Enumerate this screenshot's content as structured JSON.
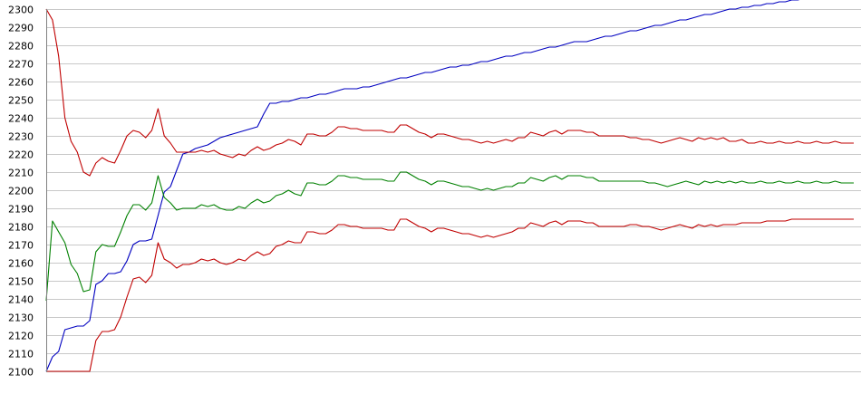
{
  "chart_data": {
    "type": "line",
    "title": "",
    "xlabel": "",
    "ylabel": "",
    "ylim": [
      2100,
      2300
    ],
    "yticks": [
      2100,
      2110,
      2120,
      2130,
      2140,
      2150,
      2160,
      2170,
      2180,
      2190,
      2200,
      2210,
      2220,
      2230,
      2240,
      2250,
      2260,
      2270,
      2280,
      2290,
      2300
    ],
    "yticks_text": [
      "2100",
      "2110",
      "2120",
      "2130",
      "2140",
      "2150",
      "2160",
      "2170",
      "2180",
      "2190",
      "2200",
      "2210",
      "2220",
      "2230",
      "2240",
      "2250",
      "2260",
      "2270",
      "2280",
      "2290",
      "2300"
    ],
    "xlim": [
      0,
      130
    ],
    "grid": "horizontal",
    "x_tick_labels": "none",
    "colors": {
      "blue": "#0000c0",
      "green": "#008000",
      "red": "#c00000",
      "grid": "#c8c8c8"
    },
    "series": [
      {
        "color": "#0000c0",
        "x": [
          0,
          1,
          2,
          3,
          4,
          5,
          6,
          7,
          8,
          9,
          10,
          11,
          12,
          13,
          14,
          15,
          16,
          17,
          18,
          19,
          20,
          21,
          22,
          23,
          24,
          25,
          26,
          27,
          28,
          29,
          30,
          31,
          32,
          33,
          34,
          35,
          36,
          37,
          38,
          39,
          40,
          41,
          42,
          43,
          44,
          45,
          46,
          47,
          48,
          49,
          50,
          51,
          52,
          53,
          54,
          55,
          56,
          57,
          58,
          59,
          60,
          61,
          62,
          63,
          64,
          65,
          66,
          67,
          68,
          69,
          70,
          71,
          72,
          73,
          74,
          75,
          76,
          77,
          78,
          79,
          80,
          81,
          82,
          83,
          84,
          85,
          86,
          87,
          88,
          89,
          90,
          91,
          92,
          93,
          94,
          95,
          96,
          97,
          98,
          99,
          100,
          101,
          102,
          103,
          104,
          105,
          106,
          107,
          108,
          109,
          110,
          111,
          112,
          113,
          114,
          115,
          116,
          117,
          118,
          119,
          120,
          121,
          122,
          123,
          124,
          125,
          126,
          127,
          128,
          129,
          130
        ],
        "values": [
          2100,
          2108,
          2111,
          2123,
          2124,
          2125,
          2125,
          2128,
          2148,
          2150,
          2154,
          2154,
          2155,
          2161,
          2170,
          2172,
          2172,
          2173,
          2186,
          2199,
          2202,
          2211,
          2220,
          2221,
          2223,
          2224,
          2225,
          2227,
          2229,
          2230,
          2231,
          2232,
          2233,
          2234,
          2235,
          2242,
          2248,
          2248,
          2249,
          2249,
          2250,
          2251,
          2251,
          2252,
          2253,
          2253,
          2254,
          2255,
          2256,
          2256,
          2256,
          2257,
          2257,
          2258,
          2259,
          2260,
          2261,
          2262,
          2262,
          2263,
          2264,
          2265,
          2265,
          2266,
          2267,
          2268,
          2268,
          2269,
          2269,
          2270,
          2271,
          2271,
          2272,
          2273,
          2274,
          2274,
          2275,
          2276,
          2276,
          2277,
          2278,
          2279,
          2279,
          2280,
          2281,
          2282,
          2282,
          2282,
          2283,
          2284,
          2285,
          2285,
          2286,
          2287,
          2288,
          2288,
          2289,
          2290,
          2291,
          2291,
          2292,
          2293,
          2294,
          2294,
          2295,
          2296,
          2297,
          2297,
          2298,
          2299,
          2300,
          2300,
          2301,
          2301,
          2302,
          2302,
          2303,
          2303,
          2304,
          2304,
          2305,
          2305,
          2306,
          2306,
          2307,
          2307,
          2308,
          2308,
          2309,
          2309,
          2310
        ]
      },
      {
        "color": "#008000",
        "x": [
          0,
          1,
          2,
          3,
          4,
          5,
          6,
          7,
          8,
          9,
          10,
          11,
          12,
          13,
          14,
          15,
          16,
          17,
          18,
          19,
          20,
          21,
          22,
          23,
          24,
          25,
          26,
          27,
          28,
          29,
          30,
          31,
          32,
          33,
          34,
          35,
          36,
          37,
          38,
          39,
          40,
          41,
          42,
          43,
          44,
          45,
          46,
          47,
          48,
          49,
          50,
          51,
          52,
          53,
          54,
          55,
          56,
          57,
          58,
          59,
          60,
          61,
          62,
          63,
          64,
          65,
          66,
          67,
          68,
          69,
          70,
          71,
          72,
          73,
          74,
          75,
          76,
          77,
          78,
          79,
          80,
          81,
          82,
          83,
          84,
          85,
          86,
          87,
          88,
          89,
          90,
          91,
          92,
          93,
          94,
          95,
          96,
          97,
          98,
          99,
          100,
          101,
          102,
          103,
          104,
          105,
          106,
          107,
          108,
          109,
          110,
          111,
          112,
          113,
          114,
          115,
          116,
          117,
          118,
          119,
          120,
          121,
          122,
          123,
          124,
          125,
          126,
          127,
          128,
          129,
          130
        ],
        "values": [
          2139,
          2183,
          2177,
          2171,
          2159,
          2154,
          2144,
          2145,
          2166,
          2170,
          2169,
          2169,
          2177,
          2186,
          2192,
          2192,
          2189,
          2193,
          2208,
          2196,
          2193,
          2189,
          2190,
          2190,
          2190,
          2192,
          2191,
          2192,
          2190,
          2189,
          2189,
          2191,
          2190,
          2193,
          2195,
          2193,
          2194,
          2197,
          2198,
          2200,
          2198,
          2197,
          2204,
          2204,
          2203,
          2203,
          2205,
          2208,
          2208,
          2207,
          2207,
          2206,
          2206,
          2206,
          2206,
          2205,
          2205,
          2210,
          2210,
          2208,
          2206,
          2205,
          2203,
          2205,
          2205,
          2204,
          2203,
          2202,
          2202,
          2201,
          2200,
          2201,
          2200,
          2201,
          2202,
          2202,
          2204,
          2204,
          2207,
          2206,
          2205,
          2207,
          2208,
          2206,
          2208,
          2208,
          2208,
          2207,
          2207,
          2205,
          2205,
          2205,
          2205,
          2205,
          2205,
          2205,
          2205,
          2204,
          2204,
          2203,
          2202,
          2203,
          2204,
          2205,
          2204,
          2203,
          2205,
          2204,
          2205,
          2204,
          2205,
          2204,
          2205,
          2204,
          2204,
          2205,
          2204,
          2204,
          2205,
          2204,
          2204,
          2205,
          2204,
          2204,
          2205,
          2204,
          2204,
          2205,
          2204,
          2204,
          2204
        ]
      },
      {
        "color": "#c00000",
        "x": [
          0,
          1,
          2,
          3,
          4,
          5,
          6,
          7,
          8,
          9,
          10,
          11,
          12,
          13,
          14,
          15,
          16,
          17,
          18,
          19,
          20,
          21,
          22,
          23,
          24,
          25,
          26,
          27,
          28,
          29,
          30,
          31,
          32,
          33,
          34,
          35,
          36,
          37,
          38,
          39,
          40,
          41,
          42,
          43,
          44,
          45,
          46,
          47,
          48,
          49,
          50,
          51,
          52,
          53,
          54,
          55,
          56,
          57,
          58,
          59,
          60,
          61,
          62,
          63,
          64,
          65,
          66,
          67,
          68,
          69,
          70,
          71,
          72,
          73,
          74,
          75,
          76,
          77,
          78,
          79,
          80,
          81,
          82,
          83,
          84,
          85,
          86,
          87,
          88,
          89,
          90,
          91,
          92,
          93,
          94,
          95,
          96,
          97,
          98,
          99,
          100,
          101,
          102,
          103,
          104,
          105,
          106,
          107,
          108,
          109,
          110,
          111,
          112,
          113,
          114,
          115,
          116,
          117,
          118,
          119,
          120,
          121,
          122,
          123,
          124,
          125,
          126,
          127,
          128,
          129,
          130
        ],
        "values": [
          2300,
          2294,
          2274,
          2240,
          2227,
          2221,
          2210,
          2208,
          2215,
          2218,
          2216,
          2215,
          2222,
          2230,
          2233,
          2232,
          2229,
          2233,
          2245,
          2230,
          2226,
          2221,
          2221,
          2221,
          2221,
          2222,
          2221,
          2222,
          2220,
          2219,
          2218,
          2220,
          2219,
          2222,
          2224,
          2222,
          2223,
          2225,
          2226,
          2228,
          2227,
          2225,
          2231,
          2231,
          2230,
          2230,
          2232,
          2235,
          2235,
          2234,
          2234,
          2233,
          2233,
          2233,
          2233,
          2232,
          2232,
          2236,
          2236,
          2234,
          2232,
          2231,
          2229,
          2231,
          2231,
          2230,
          2229,
          2228,
          2228,
          2227,
          2226,
          2227,
          2226,
          2227,
          2228,
          2227,
          2229,
          2229,
          2232,
          2231,
          2230,
          2232,
          2233,
          2231,
          2233,
          2233,
          2233,
          2232,
          2232,
          2230,
          2230,
          2230,
          2230,
          2230,
          2229,
          2229,
          2228,
          2228,
          2227,
          2226,
          2227,
          2228,
          2229,
          2228,
          2227,
          2229,
          2228,
          2229,
          2228,
          2229,
          2227,
          2227,
          2228,
          2226,
          2226,
          2227,
          2226,
          2226,
          2227,
          2226,
          2226,
          2227,
          2226,
          2226,
          2227,
          2226,
          2226,
          2227,
          2226,
          2226,
          2226
        ]
      },
      {
        "color": "#c00000",
        "x": [
          0,
          1,
          2,
          3,
          4,
          5,
          6,
          7,
          8,
          9,
          10,
          11,
          12,
          13,
          14,
          15,
          16,
          17,
          18,
          19,
          20,
          21,
          22,
          23,
          24,
          25,
          26,
          27,
          28,
          29,
          30,
          31,
          32,
          33,
          34,
          35,
          36,
          37,
          38,
          39,
          40,
          41,
          42,
          43,
          44,
          45,
          46,
          47,
          48,
          49,
          50,
          51,
          52,
          53,
          54,
          55,
          56,
          57,
          58,
          59,
          60,
          61,
          62,
          63,
          64,
          65,
          66,
          67,
          68,
          69,
          70,
          71,
          72,
          73,
          74,
          75,
          76,
          77,
          78,
          79,
          80,
          81,
          82,
          83,
          84,
          85,
          86,
          87,
          88,
          89,
          90,
          91,
          92,
          93,
          94,
          95,
          96,
          97,
          98,
          99,
          100,
          101,
          102,
          103,
          104,
          105,
          106,
          107,
          108,
          109,
          110,
          111,
          112,
          113,
          114,
          115,
          116,
          117,
          118,
          119,
          120,
          121,
          122,
          123,
          124,
          125,
          126,
          127,
          128,
          129,
          130
        ],
        "values": [
          2100,
          2100,
          2100,
          2100,
          2100,
          2100,
          2100,
          2100,
          2117,
          2122,
          2122,
          2123,
          2130,
          2141,
          2151,
          2152,
          2149,
          2153,
          2171,
          2162,
          2160,
          2157,
          2159,
          2159,
          2160,
          2162,
          2161,
          2162,
          2160,
          2159,
          2160,
          2162,
          2161,
          2164,
          2166,
          2164,
          2165,
          2169,
          2170,
          2172,
          2171,
          2171,
          2177,
          2177,
          2176,
          2176,
          2178,
          2181,
          2181,
          2180,
          2180,
          2179,
          2179,
          2179,
          2179,
          2178,
          2178,
          2184,
          2184,
          2182,
          2180,
          2179,
          2177,
          2179,
          2179,
          2178,
          2177,
          2176,
          2176,
          2175,
          2174,
          2175,
          2174,
          2175,
          2176,
          2177,
          2179,
          2179,
          2182,
          2181,
          2180,
          2182,
          2183,
          2181,
          2183,
          2183,
          2183,
          2182,
          2182,
          2180,
          2180,
          2180,
          2180,
          2180,
          2181,
          2181,
          2180,
          2180,
          2179,
          2178,
          2179,
          2180,
          2181,
          2180,
          2179,
          2181,
          2180,
          2181,
          2180,
          2181,
          2181,
          2181,
          2182,
          2182,
          2182,
          2182,
          2183,
          2183,
          2183,
          2183,
          2184,
          2184,
          2184,
          2184,
          2184,
          2184,
          2184,
          2184,
          2184,
          2184,
          2184
        ]
      }
    ]
  }
}
